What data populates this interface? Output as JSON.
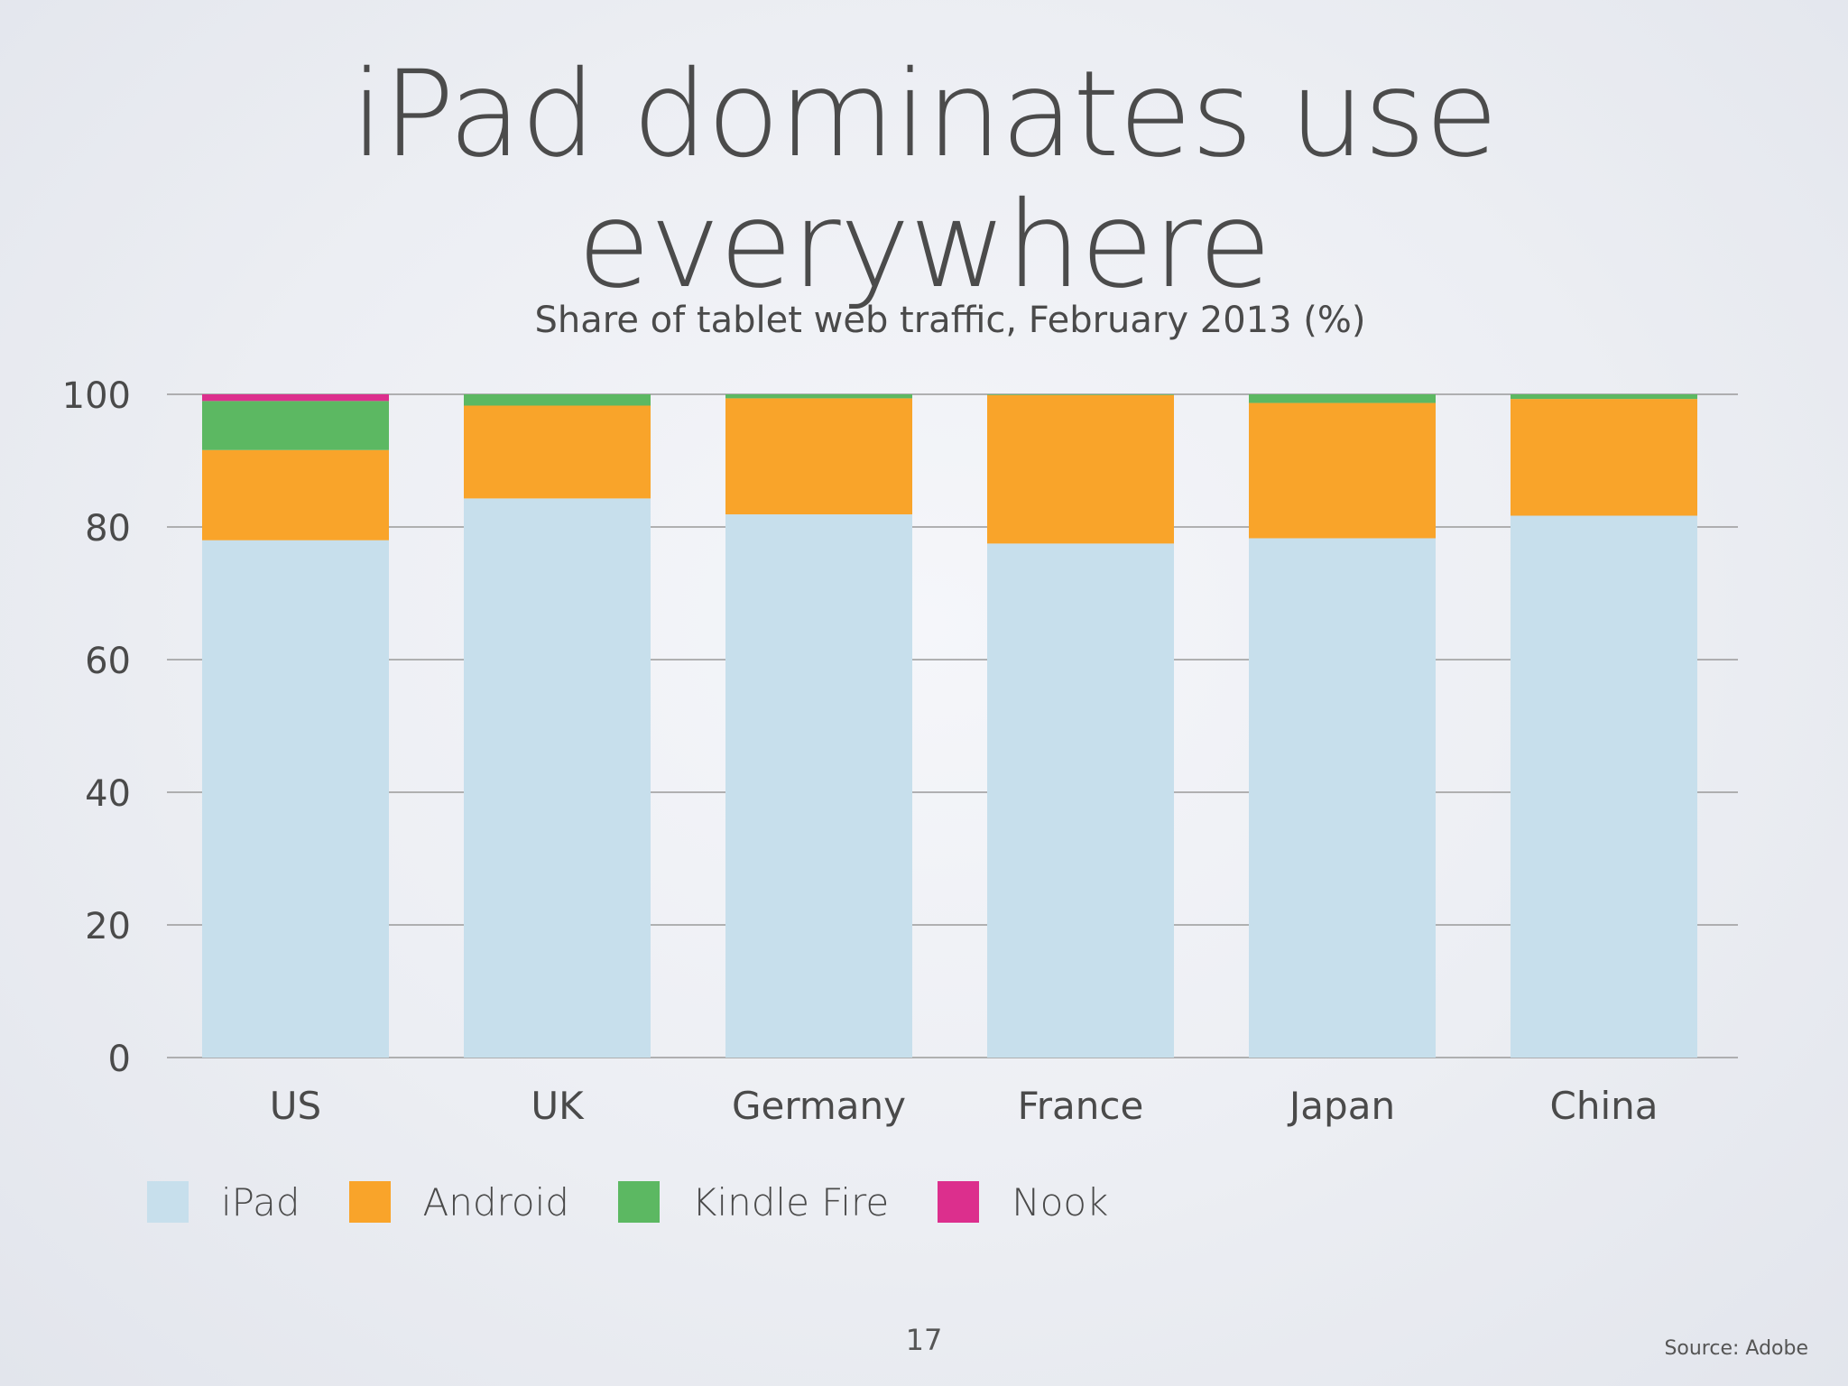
{
  "slide": {
    "title": "iPad dominates use everywhere",
    "page_number": "17",
    "source": "Source: Adobe"
  },
  "colors": {
    "iPad": "#c7dfec",
    "Android": "#f9a42a",
    "Kindle Fire": "#5cb862",
    "Nook": "#dc2f8d",
    "grid": "#9a9a9a",
    "text": "#4a4a4a"
  },
  "chart_data": {
    "type": "bar",
    "stacked": true,
    "title": "Share of tablet web traffic, February 2013 (%)",
    "xlabel": "",
    "ylabel": "",
    "ylim": [
      0,
      100
    ],
    "yticks": [
      0,
      20,
      40,
      60,
      80,
      100
    ],
    "grid": true,
    "legend_position": "bottom-left",
    "categories": [
      "US",
      "UK",
      "Germany",
      "France",
      "Japan",
      "China"
    ],
    "series": [
      {
        "name": "iPad",
        "values": [
          78.0,
          84.3,
          81.9,
          77.5,
          78.3,
          81.7
        ]
      },
      {
        "name": "Android",
        "values": [
          13.6,
          14.0,
          17.5,
          22.4,
          20.4,
          17.6
        ]
      },
      {
        "name": "Kindle Fire",
        "values": [
          7.4,
          1.7,
          0.6,
          0.1,
          1.3,
          0.7
        ]
      },
      {
        "name": "Nook",
        "values": [
          1.0,
          0.0,
          0.0,
          0.0,
          0.0,
          0.0
        ]
      }
    ]
  }
}
